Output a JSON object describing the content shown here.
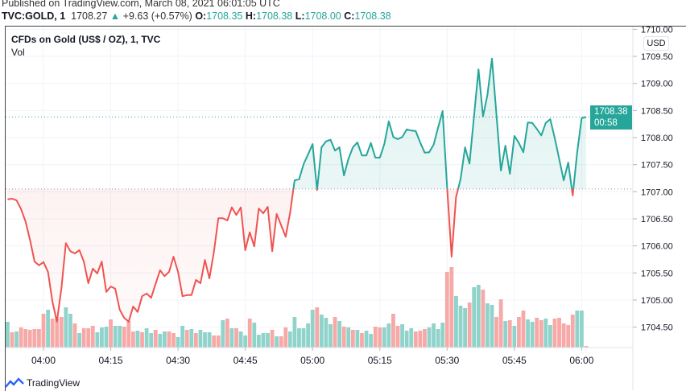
{
  "header": {
    "published": "Published on TradingView.com, March 08, 2021 06:01:05 UTC",
    "symbol": "TVC:GOLD, 1",
    "last": "1708.27",
    "change": "+9.63 (+0.57%)",
    "o_label": "O:",
    "o": "1708.35",
    "h_label": "H:",
    "h": "1708.38",
    "l_label": "L:",
    "l": "1708.00",
    "c_label": "C:",
    "c": "1708.38"
  },
  "legend": {
    "title": "CFDs on Gold (US$ / OZ), 1, TVC",
    "volume": "Vol"
  },
  "price_axis": {
    "currency": "USD",
    "current_price": "1708.38",
    "countdown": "00:58"
  },
  "footer": {
    "logo_text": "TradingView"
  },
  "colors": {
    "up": "#26a69a",
    "down": "#ef5350",
    "up_volume": "#8fd3cb",
    "down_volume": "#f7a9a7"
  },
  "chart_data": {
    "type": "area",
    "baseline": 1707.05,
    "ylim": [
      1704.2,
      1710.05
    ],
    "grid": true,
    "y_ticks": [
      "1704.50",
      "1705.00",
      "1705.50",
      "1706.00",
      "1706.50",
      "1707.00",
      "1707.50",
      "1708.00",
      "1708.50",
      "1709.00",
      "1709.50",
      "1710.00"
    ],
    "x_ticks": [
      "04:00",
      "04:15",
      "04:30",
      "04:45",
      "05:00",
      "05:15",
      "05:30",
      "05:45",
      "06:00"
    ],
    "x": [
      "03:52",
      "03:53",
      "03:54",
      "03:55",
      "03:56",
      "03:57",
      "03:58",
      "03:59",
      "04:00",
      "04:01",
      "04:02",
      "04:03",
      "04:04",
      "04:05",
      "04:06",
      "04:07",
      "04:08",
      "04:09",
      "04:10",
      "04:11",
      "04:12",
      "04:13",
      "04:14",
      "04:15",
      "04:16",
      "04:17",
      "04:18",
      "04:19",
      "04:20",
      "04:21",
      "04:22",
      "04:23",
      "04:24",
      "04:25",
      "04:26",
      "04:27",
      "04:28",
      "04:29",
      "04:30",
      "04:31",
      "04:32",
      "04:33",
      "04:34",
      "04:35",
      "04:36",
      "04:37",
      "04:38",
      "04:39",
      "04:40",
      "04:41",
      "04:42",
      "04:43",
      "04:44",
      "04:45",
      "04:46",
      "04:47",
      "04:48",
      "04:49",
      "04:50",
      "04:51",
      "04:52",
      "04:53",
      "04:54",
      "04:55",
      "04:56",
      "04:57",
      "04:58",
      "04:59",
      "05:00",
      "05:01",
      "05:02",
      "05:03",
      "05:04",
      "05:05",
      "05:06",
      "05:07",
      "05:08",
      "05:09",
      "05:10",
      "05:11",
      "05:12",
      "05:13",
      "05:14",
      "05:15",
      "05:16",
      "05:17",
      "05:18",
      "05:19",
      "05:20",
      "05:21",
      "05:22",
      "05:23",
      "05:24",
      "05:25",
      "05:26",
      "05:27",
      "05:28",
      "05:29",
      "05:30",
      "05:31",
      "05:32",
      "05:33",
      "05:34",
      "05:35",
      "05:36",
      "05:37",
      "05:38",
      "05:39",
      "05:40",
      "05:41",
      "05:42",
      "05:43",
      "05:44",
      "05:45",
      "05:46",
      "05:47",
      "05:48",
      "05:49",
      "05:50",
      "05:51",
      "05:52",
      "05:53",
      "05:54",
      "05:55",
      "05:56",
      "05:57",
      "05:58",
      "05:59",
      "06:00",
      "06:01"
    ],
    "price": [
      1706.86,
      1706.87,
      1706.84,
      1706.68,
      1706.45,
      1706.11,
      1705.71,
      1705.64,
      1705.7,
      1705.52,
      1704.97,
      1704.6,
      1705.22,
      1706.05,
      1705.9,
      1705.86,
      1705.92,
      1705.71,
      1705.31,
      1705.58,
      1705.49,
      1705.71,
      1705.15,
      1705.25,
      1705.21,
      1704.82,
      1704.67,
      1704.6,
      1704.88,
      1704.78,
      1705.07,
      1705.12,
      1705.04,
      1705.3,
      1705.55,
      1705.44,
      1705.52,
      1705.8,
      1705.52,
      1705.07,
      1705.09,
      1705.09,
      1705.37,
      1705.31,
      1705.74,
      1705.4,
      1705.89,
      1706.51,
      1706.51,
      1706.47,
      1706.71,
      1706.57,
      1706.71,
      1705.92,
      1706.25,
      1705.99,
      1706.69,
      1706.6,
      1706.72,
      1705.9,
      1706.59,
      1706.38,
      1706.17,
      1706.62,
      1707.21,
      1707.23,
      1707.51,
      1707.69,
      1707.88,
      1707.03,
      1707.82,
      1707.93,
      1707.96,
      1707.76,
      1707.82,
      1707.3,
      1707.61,
      1707.82,
      1707.91,
      1707.67,
      1707.67,
      1707.9,
      1707.63,
      1707.63,
      1707.88,
      1708.3,
      1708.01,
      1707.97,
      1708.01,
      1708.15,
      1708.13,
      1708.12,
      1707.91,
      1707.72,
      1707.73,
      1707.87,
      1708.19,
      1708.49,
      1707.08,
      1705.8,
      1706.9,
      1707.23,
      1707.82,
      1707.52,
      1708.39,
      1709.26,
      1708.39,
      1708.79,
      1709.46,
      1708.42,
      1707.39,
      1707.85,
      1707.33,
      1708.03,
      1707.9,
      1707.73,
      1708.28,
      1708.27,
      1708.16,
      1708.04,
      1708.27,
      1708.34,
      1707.99,
      1707.6,
      1707.21,
      1707.54,
      1706.93,
      1707.72,
      1708.36,
      1708.38
    ],
    "volume": [
      32,
      19,
      20,
      25,
      23,
      22,
      23,
      23,
      42,
      47,
      36,
      37,
      38,
      50,
      42,
      30,
      18,
      24,
      24,
      27,
      19,
      25,
      26,
      35,
      27,
      27,
      26,
      33,
      20,
      21,
      19,
      24,
      18,
      22,
      17,
      20,
      20,
      18,
      13,
      27,
      22,
      23,
      18,
      22,
      19,
      19,
      15,
      15,
      34,
      36,
      24,
      24,
      20,
      15,
      36,
      31,
      16,
      18,
      18,
      22,
      14,
      14,
      25,
      20,
      38,
      24,
      24,
      30,
      47,
      50,
      41,
      37,
      29,
      38,
      33,
      26,
      25,
      22,
      22,
      18,
      21,
      17,
      26,
      25,
      25,
      30,
      42,
      27,
      29,
      21,
      24,
      20,
      21,
      23,
      25,
      30,
      23,
      31,
      94,
      100,
      64,
      52,
      49,
      56,
      75,
      78,
      72,
      55,
      53,
      38,
      60,
      33,
      34,
      27,
      38,
      46,
      35,
      32,
      37,
      34,
      36,
      28,
      36,
      37,
      30,
      28,
      41,
      46,
      46,
      2
    ],
    "volume_direction": [
      "up",
      "down",
      "up",
      "down",
      "down",
      "down",
      "down",
      "down",
      "down",
      "up",
      "down",
      "down",
      "down",
      "up",
      "up",
      "down",
      "up",
      "down",
      "down",
      "down",
      "up",
      "up",
      "up",
      "down",
      "up",
      "up",
      "down",
      "down",
      "down",
      "up",
      "down",
      "up",
      "up",
      "down",
      "up",
      "up",
      "down",
      "down",
      "up",
      "up",
      "down",
      "up",
      "down",
      "up",
      "up",
      "up",
      "down",
      "down",
      "up",
      "down",
      "up",
      "down",
      "up",
      "up",
      "down",
      "up",
      "up",
      "up",
      "up",
      "down",
      "up",
      "down",
      "down",
      "up",
      "up",
      "up",
      "up",
      "up",
      "up",
      "down",
      "up",
      "up",
      "up",
      "down",
      "up",
      "down",
      "up",
      "down",
      "up",
      "down",
      "up",
      "up",
      "down",
      "down",
      "up",
      "up",
      "down",
      "down",
      "up",
      "up",
      "up",
      "down",
      "down",
      "down",
      "up",
      "up",
      "up",
      "up",
      "down",
      "down",
      "up",
      "up",
      "up",
      "down",
      "up",
      "up",
      "down",
      "up",
      "up",
      "down",
      "down",
      "up",
      "down",
      "up",
      "down",
      "down",
      "up",
      "up",
      "down",
      "down",
      "up",
      "up",
      "down",
      "down",
      "down",
      "down",
      "down",
      "up",
      "up",
      "down"
    ]
  }
}
